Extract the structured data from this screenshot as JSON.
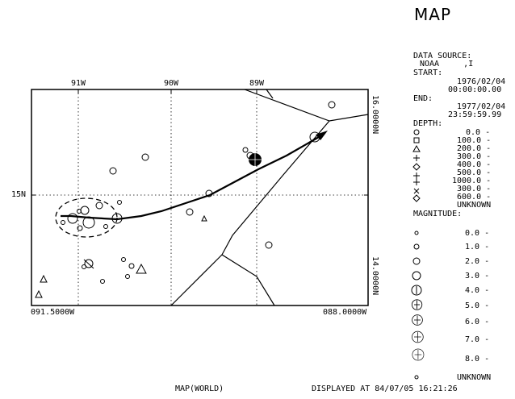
{
  "title": "MAP",
  "map": {
    "top_ticks": [
      "91W",
      "90W",
      "89W"
    ],
    "right_ticks": [
      "16.0000N",
      "14.0000N"
    ],
    "left_lat": "15N",
    "bottom_left": "091.5000W",
    "bottom_right": "088.0000W",
    "footer_left": "MAP(WORLD)"
  },
  "sidebar": {
    "data_source_label": "DATA SOURCE:",
    "data_source_value": "NOAA     ,I",
    "start_label": "START:",
    "start_date": "1976/02/04",
    "start_time": "00:00:00.00",
    "end_label": "END:",
    "end_date": "1977/02/04",
    "end_time": "23:59:59.99",
    "depth_label": "DEPTH:",
    "depth_values": [
      "0.0 -",
      "100.0 -",
      "200.0 -",
      "300.0 -",
      "400.0 -",
      "500.0 -",
      "1000.0 -",
      "300.0 -",
      "600.0 -",
      "UNKNOWN"
    ],
    "magnitude_label": "MAGNITUDE:",
    "magnitude_values": [
      "0.0 -",
      "1.0 -",
      "2.0 -",
      "3.0 -",
      "4.0 -",
      "5.0 -",
      "6.0 -",
      "7.0 -",
      "8.0 -",
      "UNKNOWN"
    ]
  },
  "footer": {
    "displayed": "DISPLAYED AT 84/07/05 16:21:26"
  }
}
